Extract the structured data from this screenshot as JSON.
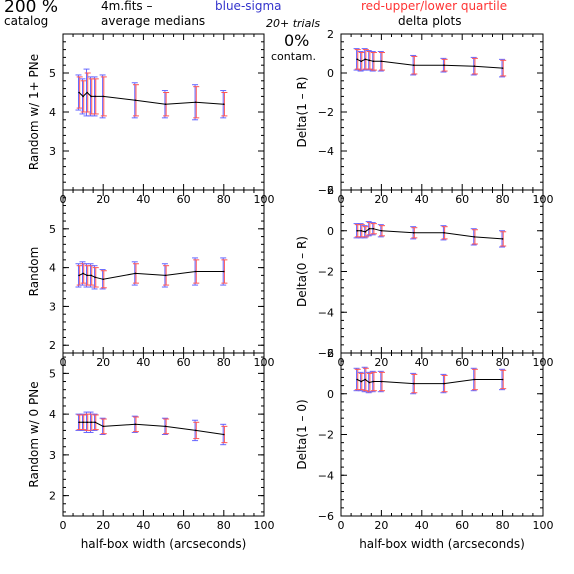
{
  "header": {
    "percent": "200 %",
    "catalog": "catalog",
    "file": "4m.fits  –",
    "average": "average medians",
    "blue_label": "blue-sigma",
    "red_label": "red-upper/lower quartile",
    "trials": "20+ trials",
    "delta": "delta plots",
    "contam_pct": "0%",
    "contam": "contam."
  },
  "colors": {
    "axis": "#000000",
    "line": "#000000",
    "sigma": "#6666ff",
    "quartile": "#ff5555",
    "blue_text": "#3333cc",
    "red_text": "#ff3333"
  },
  "chart_data": [
    {
      "type": "line",
      "panel": "left-1",
      "ylabel": "Random w/ 1+ PNe",
      "xlabel": "",
      "xlim": [
        0,
        100
      ],
      "ylim": [
        2,
        6
      ],
      "xticks": [
        0,
        20,
        40,
        60,
        80,
        100
      ],
      "yticks": [
        3,
        4,
        5
      ],
      "x": [
        8,
        10,
        12,
        14,
        16,
        20,
        36,
        51,
        66,
        80
      ],
      "y": [
        4.5,
        4.4,
        4.5,
        4.4,
        4.4,
        4.4,
        4.3,
        4.2,
        4.25,
        4.2
      ],
      "sigma": [
        0.45,
        0.45,
        0.6,
        0.5,
        0.5,
        0.55,
        0.45,
        0.35,
        0.45,
        0.35
      ],
      "quartile": [
        0.4,
        0.4,
        0.5,
        0.45,
        0.45,
        0.5,
        0.4,
        0.3,
        0.4,
        0.3
      ]
    },
    {
      "type": "line",
      "panel": "left-2",
      "ylabel": "Random",
      "xlabel": "",
      "xlim": [
        0,
        100
      ],
      "ylim": [
        1.8,
        6
      ],
      "xticks": [
        0,
        20,
        40,
        60,
        80,
        100
      ],
      "yticks": [
        2,
        3,
        4,
        5
      ],
      "x": [
        8,
        10,
        12,
        14,
        16,
        20,
        36,
        51,
        66,
        80
      ],
      "y": [
        3.8,
        3.85,
        3.8,
        3.8,
        3.75,
        3.7,
        3.85,
        3.8,
        3.9,
        3.9
      ],
      "sigma": [
        0.3,
        0.3,
        0.3,
        0.3,
        0.3,
        0.25,
        0.3,
        0.3,
        0.35,
        0.35
      ],
      "quartile": [
        0.25,
        0.25,
        0.25,
        0.25,
        0.25,
        0.22,
        0.25,
        0.25,
        0.3,
        0.3
      ]
    },
    {
      "type": "line",
      "panel": "left-3",
      "ylabel": "Random w/ 0 PNe",
      "xlabel": "half-box width (arcseconds)",
      "xlim": [
        0,
        100
      ],
      "ylim": [
        1.5,
        5.5
      ],
      "xticks": [
        0,
        20,
        40,
        60,
        80,
        100
      ],
      "yticks": [
        2,
        3,
        4,
        5
      ],
      "x": [
        8,
        10,
        12,
        14,
        16,
        20,
        36,
        51,
        66,
        80
      ],
      "y": [
        3.8,
        3.8,
        3.8,
        3.8,
        3.8,
        3.7,
        3.75,
        3.7,
        3.6,
        3.5
      ],
      "sigma": [
        0.2,
        0.2,
        0.25,
        0.25,
        0.2,
        0.2,
        0.2,
        0.2,
        0.25,
        0.25
      ],
      "quartile": [
        0.18,
        0.18,
        0.2,
        0.2,
        0.18,
        0.18,
        0.18,
        0.18,
        0.2,
        0.2
      ]
    },
    {
      "type": "line",
      "panel": "right-1",
      "ylabel": "Delta(1 – R)",
      "xlabel": "",
      "xlim": [
        0,
        100
      ],
      "ylim": [
        -6,
        2
      ],
      "xticks": [
        0,
        20,
        40,
        60,
        80,
        100
      ],
      "yticks": [
        -6,
        -4,
        -2,
        0,
        2
      ],
      "x": [
        8,
        10,
        12,
        14,
        16,
        20,
        36,
        51,
        66,
        80
      ],
      "y": [
        0.7,
        0.6,
        0.7,
        0.65,
        0.6,
        0.6,
        0.4,
        0.4,
        0.35,
        0.25
      ],
      "sigma": [
        0.55,
        0.5,
        0.55,
        0.5,
        0.5,
        0.5,
        0.5,
        0.35,
        0.45,
        0.45
      ],
      "quartile": [
        0.5,
        0.45,
        0.5,
        0.45,
        0.45,
        0.45,
        0.45,
        0.3,
        0.4,
        0.4
      ]
    },
    {
      "type": "line",
      "panel": "right-2",
      "ylabel": "Delta(0 – R)",
      "xlabel": "",
      "xlim": [
        0,
        100
      ],
      "ylim": [
        -6,
        2
      ],
      "xticks": [
        0,
        20,
        40,
        60,
        80,
        100
      ],
      "yticks": [
        -6,
        -4,
        -2,
        0,
        2
      ],
      "x": [
        8,
        10,
        12,
        14,
        16,
        20,
        36,
        51,
        66,
        80
      ],
      "y": [
        0.0,
        0.0,
        -0.05,
        0.1,
        0.1,
        0.0,
        -0.1,
        -0.1,
        -0.3,
        -0.4
      ],
      "sigma": [
        0.35,
        0.35,
        0.3,
        0.35,
        0.3,
        0.3,
        0.3,
        0.35,
        0.4,
        0.4
      ],
      "quartile": [
        0.3,
        0.3,
        0.25,
        0.3,
        0.25,
        0.25,
        0.25,
        0.3,
        0.35,
        0.35
      ]
    },
    {
      "type": "line",
      "panel": "right-3",
      "ylabel": "Delta(1 – 0)",
      "xlabel": "half-box width (arcseconds)",
      "xlim": [
        0,
        100
      ],
      "ylim": [
        -6,
        2
      ],
      "xticks": [
        0,
        20,
        40,
        60,
        80,
        100
      ],
      "yticks": [
        -6,
        -4,
        -2,
        0,
        2
      ],
      "x": [
        8,
        10,
        12,
        14,
        16,
        20,
        36,
        51,
        66,
        80
      ],
      "y": [
        0.7,
        0.6,
        0.7,
        0.55,
        0.6,
        0.6,
        0.5,
        0.5,
        0.7,
        0.7
      ],
      "sigma": [
        0.55,
        0.45,
        0.6,
        0.5,
        0.5,
        0.5,
        0.5,
        0.45,
        0.55,
        0.5
      ],
      "quartile": [
        0.5,
        0.4,
        0.55,
        0.45,
        0.45,
        0.45,
        0.45,
        0.4,
        0.5,
        0.45
      ]
    }
  ]
}
